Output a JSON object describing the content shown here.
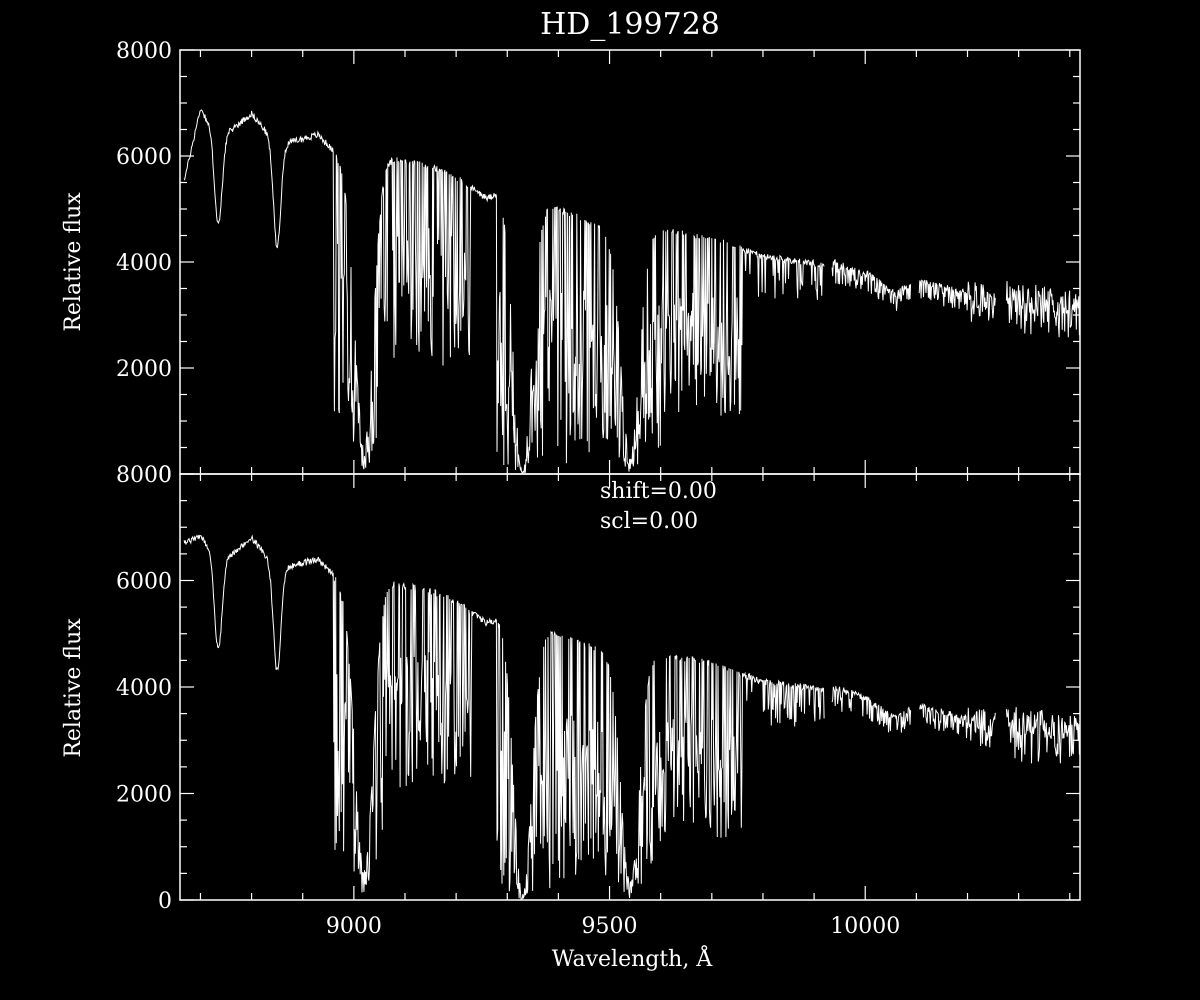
{
  "chart_data": [
    {
      "type": "line",
      "panel": "top",
      "title": "HD_199728",
      "ylabel": "Relative flux",
      "xlabel": "",
      "xlim": [
        8660,
        10420
      ],
      "ylim": [
        0,
        8000
      ],
      "yticks": [
        "0",
        "2000",
        "4000",
        "6000",
        "8000"
      ],
      "xticks": [
        "9000",
        "9500",
        "10000"
      ],
      "continuum": [
        [
          8670,
          5600
        ],
        [
          8700,
          6900
        ],
        [
          8735,
          6300
        ],
        [
          8800,
          6800
        ],
        [
          8850,
          6200
        ],
        [
          8930,
          6400
        ],
        [
          8990,
          5800
        ],
        [
          9050,
          6000
        ],
        [
          9150,
          5800
        ],
        [
          9200,
          5600
        ],
        [
          9260,
          5200
        ],
        [
          9300,
          5400
        ],
        [
          9400,
          5000
        ],
        [
          9500,
          4600
        ],
        [
          9600,
          4600
        ],
        [
          9700,
          4450
        ],
        [
          9800,
          4100
        ],
        [
          9920,
          3950
        ],
        [
          9935,
          4000
        ],
        [
          10000,
          3800
        ],
        [
          10060,
          3400
        ],
        [
          10100,
          3650
        ],
        [
          10250,
          3300
        ],
        [
          10280,
          3400
        ],
        [
          10420,
          3200
        ]
      ],
      "absorption": [
        [
          8735,
          4700
        ],
        [
          8850,
          4300
        ],
        [
          9020,
          500
        ],
        [
          9330,
          50
        ],
        [
          9540,
          300
        ]
      ],
      "gaps": [
        [
          9920,
          9935
        ],
        [
          10090,
          10105
        ],
        [
          10255,
          10275
        ]
      ],
      "grid": false
    },
    {
      "type": "line",
      "panel": "bottom",
      "title": "",
      "ylabel": "Relative flux",
      "xlabel": "Wavelength, Å",
      "xlim": [
        8660,
        10420
      ],
      "ylim": [
        0,
        8000
      ],
      "yticks": [
        "0",
        "2000",
        "4000",
        "6000",
        "8000"
      ],
      "xticks": [
        "9000",
        "9500",
        "10000"
      ],
      "annotations": [
        "shift=0.00",
        "scl=0.00"
      ],
      "continuum": [
        [
          8670,
          6700
        ],
        [
          8700,
          6850
        ],
        [
          8735,
          6300
        ],
        [
          8800,
          6800
        ],
        [
          8850,
          6200
        ],
        [
          8930,
          6400
        ],
        [
          8990,
          5800
        ],
        [
          9050,
          6000
        ],
        [
          9150,
          5800
        ],
        [
          9200,
          5600
        ],
        [
          9260,
          5200
        ],
        [
          9300,
          5400
        ],
        [
          9400,
          5000
        ],
        [
          9500,
          4600
        ],
        [
          9600,
          4600
        ],
        [
          9700,
          4450
        ],
        [
          9800,
          4100
        ],
        [
          9920,
          3950
        ],
        [
          9935,
          4000
        ],
        [
          10000,
          3800
        ],
        [
          10060,
          3400
        ],
        [
          10100,
          3650
        ],
        [
          10250,
          3300
        ],
        [
          10280,
          3400
        ],
        [
          10420,
          3200
        ]
      ],
      "absorption": [
        [
          8735,
          4700
        ],
        [
          8850,
          4300
        ],
        [
          9020,
          500
        ],
        [
          9330,
          50
        ],
        [
          9540,
          300
        ]
      ],
      "gaps": [
        [
          9920,
          9935
        ],
        [
          10090,
          10105
        ],
        [
          10255,
          10275
        ]
      ],
      "grid": false
    }
  ]
}
